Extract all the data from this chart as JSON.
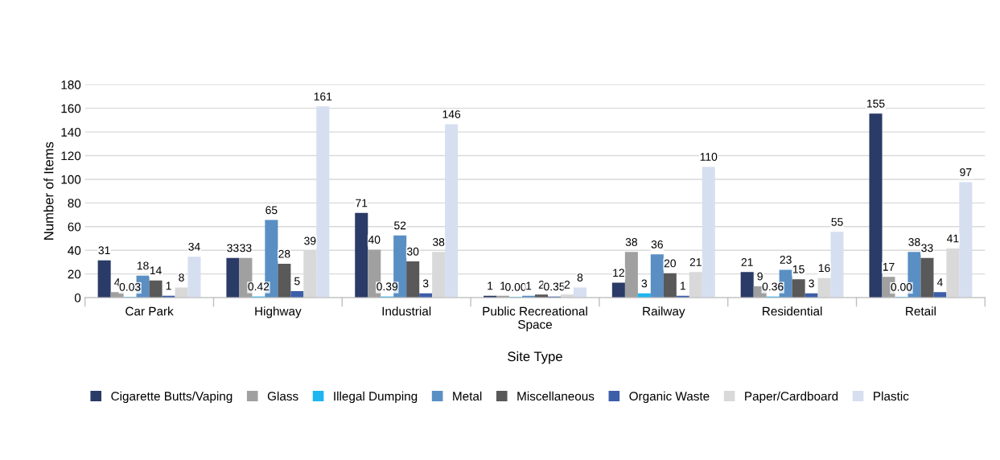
{
  "chart_data": {
    "type": "bar",
    "xlabel": "Site Type",
    "ylabel": "Number of Items",
    "categories": [
      "Car Park",
      "Highway",
      "Industrial",
      "Public Recreational Space",
      "Railway",
      "Residential",
      "Retail"
    ],
    "series": [
      {
        "name": "Cigarette Butts/Vaping",
        "color": "#2b3b67",
        "values": [
          31,
          33,
          71,
          1,
          12,
          21,
          155
        ],
        "value_labels": [
          "31",
          "33",
          "71",
          "1",
          "12",
          "21",
          "155"
        ]
      },
      {
        "name": "Glass",
        "color": "#a0a0a0",
        "values": [
          4,
          33,
          40,
          1,
          38,
          9,
          17
        ],
        "value_labels": [
          "4",
          "33",
          "40",
          "1",
          "38",
          "9",
          "17"
        ]
      },
      {
        "name": "Illegal Dumping",
        "color": "#1fb5f0",
        "values": [
          0.03,
          0.42,
          0.39,
          0,
          3,
          0.36,
          0
        ],
        "value_labels": [
          "0.03",
          "0.42",
          "0.39",
          "0.00",
          "3",
          "0.36",
          "0.00"
        ]
      },
      {
        "name": "Metal",
        "color": "#5a8fc4",
        "values": [
          18,
          65,
          52,
          1,
          36,
          23,
          38
        ],
        "value_labels": [
          "18",
          "65",
          "52",
          "1",
          "36",
          "23",
          "38"
        ]
      },
      {
        "name": "Miscellaneous",
        "color": "#595959",
        "values": [
          14,
          28,
          30,
          2,
          20,
          15,
          33
        ],
        "value_labels": [
          "14",
          "28",
          "30",
          "2",
          "20",
          "15",
          "33"
        ]
      },
      {
        "name": "Organic Waste",
        "color": "#3d5ea8",
        "values": [
          1,
          5,
          3,
          0.35,
          1,
          3,
          4
        ],
        "value_labels": [
          "1",
          "5",
          "3",
          "0.35",
          "1",
          "3",
          "4"
        ]
      },
      {
        "name": "Paper/Cardboard",
        "color": "#d9d9d9",
        "values": [
          8,
          39,
          38,
          2,
          21,
          16,
          41
        ],
        "value_labels": [
          "8",
          "39",
          "38",
          "2",
          "21",
          "16",
          "41"
        ]
      },
      {
        "name": "Plastic",
        "color": "#d6dff0",
        "values": [
          34,
          161,
          146,
          8,
          110,
          55,
          97
        ],
        "value_labels": [
          "34",
          "161",
          "146",
          "8",
          "110",
          "55",
          "97"
        ]
      }
    ],
    "ylim": [
      0,
      180
    ],
    "yticks": [
      0,
      20,
      40,
      60,
      80,
      100,
      120,
      140,
      160,
      180
    ],
    "grid": "y",
    "legend": "bottom"
  }
}
